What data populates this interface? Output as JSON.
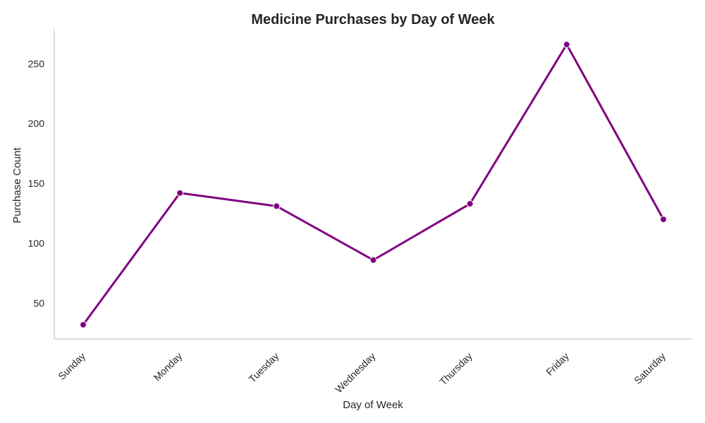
{
  "chart_data": {
    "type": "line",
    "title": "Medicine Purchases by Day of Week",
    "xlabel": "Day of Week",
    "ylabel": "Purchase Count",
    "categories": [
      "Sunday",
      "Monday",
      "Tuesday",
      "Wednesday",
      "Thursday",
      "Friday",
      "Saturday"
    ],
    "series": [
      {
        "values": [
          32,
          142,
          131,
          86,
          133,
          266,
          120
        ],
        "color": "#800080"
      }
    ],
    "yticks": [
      50,
      100,
      150,
      200,
      250
    ],
    "ylim": [
      20,
      279
    ],
    "grid": false,
    "legend": "none"
  }
}
